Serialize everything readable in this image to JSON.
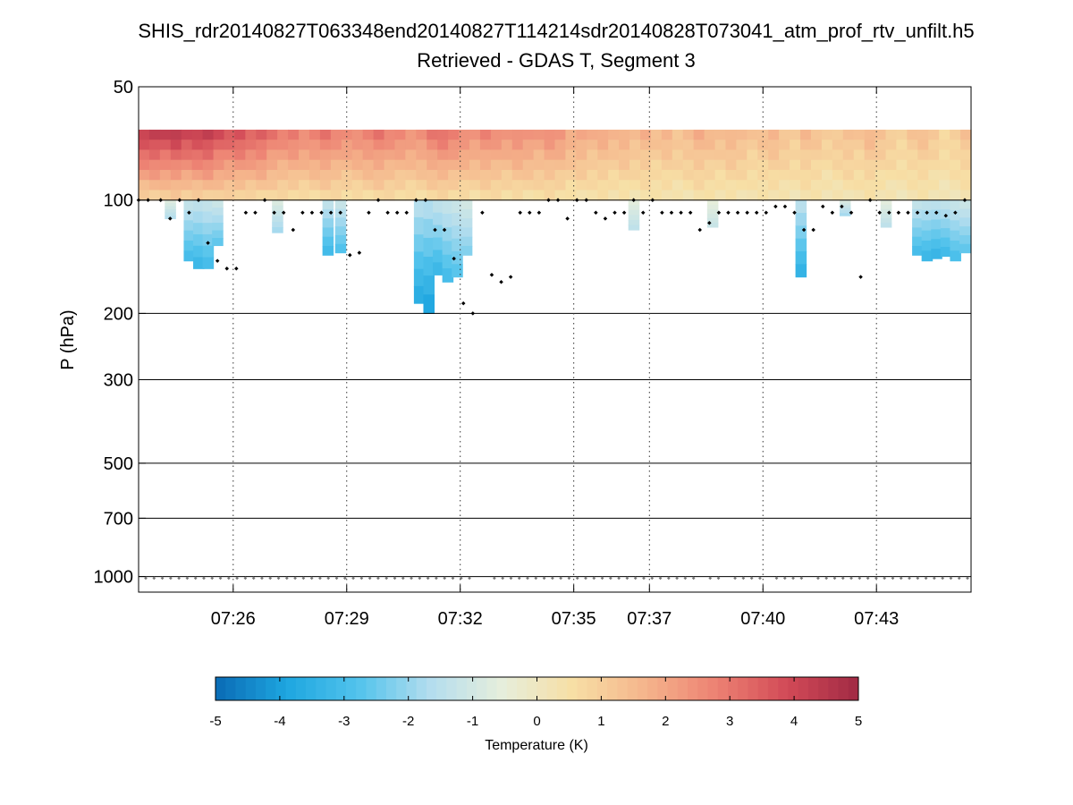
{
  "chart_data": {
    "type": "heatmap",
    "title": "SHIS_rdr20140827T063348end20140827T114214sdr20140828T073041_atm_prof_rtv_unfilt.h5",
    "subtitle": "Retrieved - GDAS T, Segment 3",
    "xlabel": "",
    "ylabel": "P (hPa)",
    "x_range": [
      "07:23:30",
      "07:45:30"
    ],
    "x_ticks": [
      "07:26",
      "07:29",
      "07:32",
      "07:35",
      "07:37",
      "07:40",
      "07:43"
    ],
    "y_scale": "log",
    "y_reversed": true,
    "y_range": [
      50,
      1100
    ],
    "y_ticks": [
      50,
      100,
      200,
      300,
      500,
      700,
      1000
    ],
    "grid": {
      "x": "dotted",
      "y_major": "solid"
    },
    "colorbar": {
      "label": "Temperature (K)",
      "range": [
        -5,
        5
      ],
      "ticks": [
        -5,
        -4,
        -3,
        -2,
        -1,
        0,
        1,
        2,
        3,
        4,
        5
      ],
      "placement": "bottom"
    },
    "colormap": [
      "#0a6bb5",
      "#1ea6e0",
      "#52c3ec",
      "#b3ddee",
      "#e6eedc",
      "#f7dfa5",
      "#f5b58c",
      "#ed8273",
      "#d24a57",
      "#a12a44"
    ],
    "series": [
      {
        "name": "warm upper layer",
        "p_top": 65,
        "p_bottom": 100,
        "values": [
          4.2,
          4.3,
          4.1,
          4.4,
          4.0,
          4.2,
          4.3,
          3.8,
          3.6,
          3.7,
          3.4,
          3.5,
          3.0,
          2.8,
          2.9,
          2.6,
          2.8,
          3.0,
          2.7,
          2.5,
          2.6,
          2.8,
          3.0,
          2.7,
          2.6,
          2.4,
          2.5,
          2.9,
          3.1,
          2.8,
          2.6,
          2.4,
          2.7,
          2.5,
          2.3,
          2.6,
          2.4,
          2.2,
          2.5,
          2.3,
          1.9,
          2.0,
          1.7,
          1.9,
          1.6,
          1.8,
          1.5,
          1.7,
          1.4,
          1.6,
          1.3,
          1.5,
          1.8,
          1.6,
          1.4,
          1.7,
          1.5,
          1.2,
          1.4,
          1.6,
          1.3,
          1.1,
          1.5,
          1.3,
          1.0,
          1.2,
          1.4,
          1.2,
          1.6,
          1.3,
          1.1,
          0.9,
          1.2,
          1.4,
          1.1,
          0.8,
          1.0,
          1.3
        ]
      },
      {
        "name": "cold anomalies",
        "columns": [
          {
            "t": "07:24:20",
            "p_top": 100,
            "p_bottom": 112,
            "value": -1.6
          },
          {
            "t": "07:24:50",
            "p_top": 100,
            "p_bottom": 145,
            "value": -3.0
          },
          {
            "t": "07:25:05",
            "p_top": 100,
            "p_bottom": 152,
            "value": -3.2
          },
          {
            "t": "07:25:20",
            "p_top": 100,
            "p_bottom": 152,
            "value": -3.0
          },
          {
            "t": "07:25:35",
            "p_top": 100,
            "p_bottom": 132,
            "value": -2.6
          },
          {
            "t": "07:27:10",
            "p_top": 100,
            "p_bottom": 122,
            "value": -1.8
          },
          {
            "t": "07:28:30",
            "p_top": 100,
            "p_bottom": 140,
            "value": -3.1
          },
          {
            "t": "07:28:50",
            "p_top": 100,
            "p_bottom": 138,
            "value": -2.8
          },
          {
            "t": "07:30:55",
            "p_top": 100,
            "p_bottom": 188,
            "value": -3.6
          },
          {
            "t": "07:31:10",
            "p_top": 100,
            "p_bottom": 200,
            "value": -3.8
          },
          {
            "t": "07:31:25",
            "p_top": 100,
            "p_bottom": 158,
            "value": -3.2
          },
          {
            "t": "07:31:40",
            "p_top": 100,
            "p_bottom": 165,
            "value": -3.0
          },
          {
            "t": "07:31:55",
            "p_top": 100,
            "p_bottom": 160,
            "value": -2.7
          },
          {
            "t": "07:32:10",
            "p_top": 100,
            "p_bottom": 140,
            "value": -2.2
          },
          {
            "t": "07:36:35",
            "p_top": 100,
            "p_bottom": 120,
            "value": -1.4
          },
          {
            "t": "07:38:40",
            "p_top": 100,
            "p_bottom": 118,
            "value": -1.2
          },
          {
            "t": "07:41:00",
            "p_top": 100,
            "p_bottom": 160,
            "value": -3.4
          },
          {
            "t": "07:42:10",
            "p_top": 100,
            "p_bottom": 110,
            "value": -1.8
          },
          {
            "t": "07:43:15",
            "p_top": 100,
            "p_bottom": 118,
            "value": -1.4
          },
          {
            "t": "07:44:05",
            "p_top": 100,
            "p_bottom": 140,
            "value": -3.0
          },
          {
            "t": "07:44:20",
            "p_top": 100,
            "p_bottom": 145,
            "value": -3.2
          },
          {
            "t": "07:44:35",
            "p_top": 100,
            "p_bottom": 143,
            "value": -3.3
          },
          {
            "t": "07:44:50",
            "p_top": 100,
            "p_bottom": 141,
            "value": -3.1
          },
          {
            "t": "07:45:05",
            "p_top": 100,
            "p_bottom": 145,
            "value": -2.9
          },
          {
            "t": "07:45:20",
            "p_top": 100,
            "p_bottom": 138,
            "value": -2.6
          }
        ]
      },
      {
        "name": "tropopause markers",
        "points": [
          [
            "07:23:30",
            100
          ],
          [
            "07:23:45",
            100
          ],
          [
            "07:24:05",
            100
          ],
          [
            "07:24:20",
            112
          ],
          [
            "07:24:35",
            100
          ],
          [
            "07:24:50",
            108
          ],
          [
            "07:25:05",
            100
          ],
          [
            "07:25:20",
            130
          ],
          [
            "07:25:35",
            145
          ],
          [
            "07:25:50",
            152
          ],
          [
            "07:26:05",
            152
          ],
          [
            "07:26:20",
            108
          ],
          [
            "07:26:35",
            108
          ],
          [
            "07:26:50",
            100
          ],
          [
            "07:27:05",
            108
          ],
          [
            "07:27:20",
            108
          ],
          [
            "07:27:35",
            120
          ],
          [
            "07:27:50",
            108
          ],
          [
            "07:28:05",
            108
          ],
          [
            "07:28:20",
            108
          ],
          [
            "07:28:35",
            108
          ],
          [
            "07:28:50",
            108
          ],
          [
            "07:29:05",
            140
          ],
          [
            "07:29:20",
            138
          ],
          [
            "07:29:35",
            108
          ],
          [
            "07:29:50",
            100
          ],
          [
            "07:30:05",
            108
          ],
          [
            "07:30:20",
            108
          ],
          [
            "07:30:35",
            108
          ],
          [
            "07:30:50",
            100
          ],
          [
            "07:31:05",
            100
          ],
          [
            "07:31:20",
            120
          ],
          [
            "07:31:35",
            120
          ],
          [
            "07:31:50",
            143
          ],
          [
            "07:32:05",
            188
          ],
          [
            "07:32:20",
            200
          ],
          [
            "07:32:35",
            108
          ],
          [
            "07:32:50",
            158
          ],
          [
            "07:33:05",
            165
          ],
          [
            "07:33:20",
            160
          ],
          [
            "07:33:35",
            108
          ],
          [
            "07:33:50",
            108
          ],
          [
            "07:34:05",
            108
          ],
          [
            "07:34:20",
            100
          ],
          [
            "07:34:35",
            100
          ],
          [
            "07:34:50",
            112
          ],
          [
            "07:35:05",
            100
          ],
          [
            "07:35:20",
            100
          ],
          [
            "07:35:35",
            108
          ],
          [
            "07:35:50",
            112
          ],
          [
            "07:36:05",
            108
          ],
          [
            "07:36:20",
            108
          ],
          [
            "07:36:35",
            100
          ],
          [
            "07:36:50",
            108
          ],
          [
            "07:37:05",
            100
          ],
          [
            "07:37:20",
            108
          ],
          [
            "07:37:35",
            108
          ],
          [
            "07:37:50",
            108
          ],
          [
            "07:38:05",
            108
          ],
          [
            "07:38:20",
            120
          ],
          [
            "07:38:35",
            115
          ],
          [
            "07:38:50",
            108
          ],
          [
            "07:39:05",
            108
          ],
          [
            "07:39:20",
            108
          ],
          [
            "07:39:35",
            108
          ],
          [
            "07:39:50",
            108
          ],
          [
            "07:40:05",
            108
          ],
          [
            "07:40:20",
            104
          ],
          [
            "07:40:35",
            104
          ],
          [
            "07:40:50",
            108
          ],
          [
            "07:41:05",
            120
          ],
          [
            "07:41:20",
            120
          ],
          [
            "07:41:35",
            104
          ],
          [
            "07:41:50",
            108
          ],
          [
            "07:42:05",
            104
          ],
          [
            "07:42:20",
            108
          ],
          [
            "07:42:35",
            160
          ],
          [
            "07:42:50",
            100
          ],
          [
            "07:43:05",
            108
          ],
          [
            "07:43:20",
            108
          ],
          [
            "07:43:35",
            108
          ],
          [
            "07:43:50",
            108
          ],
          [
            "07:44:05",
            108
          ],
          [
            "07:44:20",
            108
          ],
          [
            "07:44:35",
            108
          ],
          [
            "07:44:50",
            110
          ],
          [
            "07:45:05",
            108
          ],
          [
            "07:45:20",
            100
          ]
        ]
      },
      {
        "name": "surface level",
        "p": 1010
      }
    ]
  }
}
